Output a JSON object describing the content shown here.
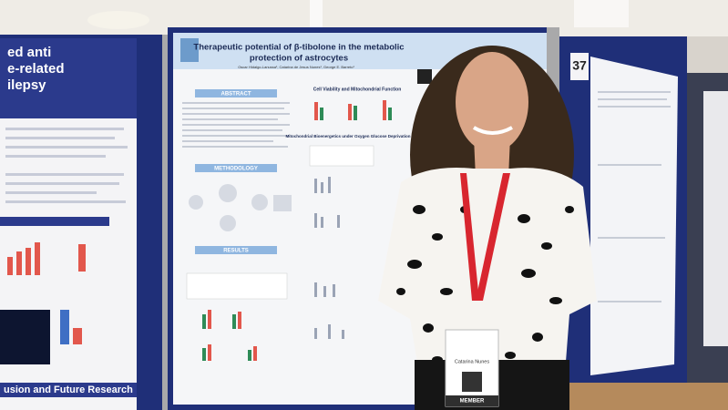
{
  "left_poster": {
    "title_lines": [
      "ed anti",
      "e-related",
      "ilepsy"
    ],
    "footer": "usion and Future Research"
  },
  "center_poster": {
    "title_lines": [
      "Therapeutic potential of β-tibolone in the metabolic",
      "protection of astrocytes"
    ],
    "authors": "Oscar Hidalgo-Lanussa¹, Catarina de Jesus Nunes¹, George E. Barreto¹",
    "sections": [
      "ABSTRACT",
      "METHODOLOGY",
      "RESULTS"
    ],
    "figure_headings": [
      "Cell Viability and Mitochondrial Function",
      "Mitochondrial Bioenergetics under Oxygen Glucose Deprivation"
    ]
  },
  "right_poster": {
    "board_number": "37"
  },
  "badge": {
    "name": "Catarina Nunes",
    "role": "MEMBER"
  }
}
